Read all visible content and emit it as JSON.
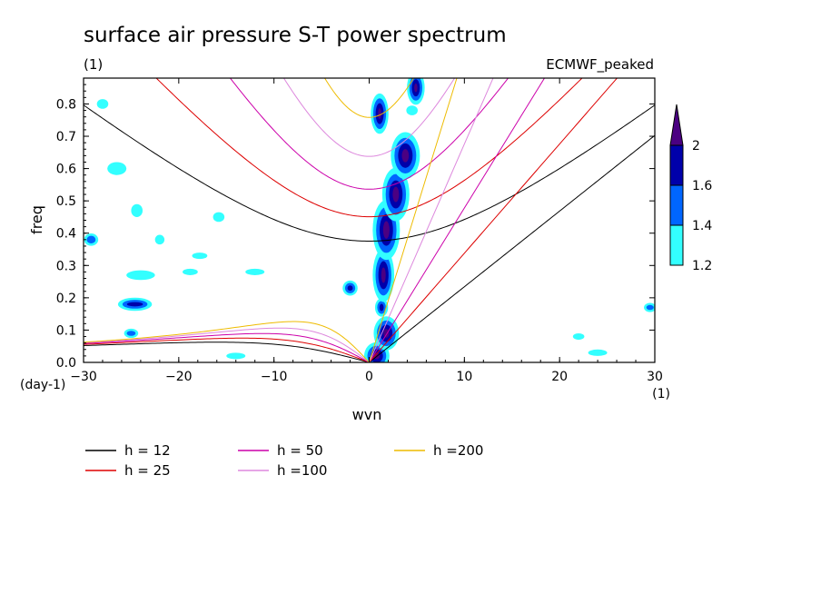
{
  "chart_data": {
    "type": "heatmap",
    "title": "surface air pressure S-T power spectrum",
    "subtitle_left": "(1)",
    "subtitle_right": "ECMWF_peaked",
    "xlabel": "wvn",
    "ylabel": "freq",
    "x_unit": "(1)",
    "y_unit": "(day-1)",
    "xlim": [
      -30,
      30
    ],
    "ylim": [
      0,
      0.88
    ],
    "xticks": [
      -30,
      -20,
      -10,
      0,
      10,
      20,
      30
    ],
    "yticks": [
      0.0,
      0.1,
      0.2,
      0.3,
      0.4,
      0.5,
      0.6,
      0.7,
      0.8
    ],
    "ytick_labels": [
      "0.0",
      "0.1",
      "0.2",
      "0.3",
      "0.4",
      "0.5",
      "0.6",
      "0.7",
      "0.8"
    ],
    "colorbar": {
      "levels": [
        "1.2",
        "1.4",
        "1.6",
        "2"
      ],
      "colors": [
        "#33ffff",
        "#0066ff",
        "#0000aa",
        "#4b0082"
      ]
    },
    "dispersion_curves": [
      {
        "label": "h = 12",
        "h": 12,
        "color": "#000000"
      },
      {
        "label": "h = 25",
        "h": 25,
        "color": "#dd0000"
      },
      {
        "label": "h = 50",
        "h": 50,
        "color": "#cc00aa"
      },
      {
        "label": "h =100",
        "h": 100,
        "color": "#dd88dd"
      },
      {
        "label": "h =200",
        "h": 200,
        "color": "#eebb00"
      }
    ],
    "blobs": [
      {
        "x": 0.8,
        "y": 0.02,
        "rx": 0.9,
        "ry": 0.03,
        "level": 3
      },
      {
        "x": 1.8,
        "y": 0.09,
        "rx": 0.9,
        "ry": 0.04,
        "level": 3
      },
      {
        "x": 1.3,
        "y": 0.17,
        "rx": 0.4,
        "ry": 0.02,
        "level": 2
      },
      {
        "x": 1.5,
        "y": 0.27,
        "rx": 0.7,
        "ry": 0.07,
        "level": 3
      },
      {
        "x": 1.8,
        "y": 0.41,
        "rx": 1.0,
        "ry": 0.08,
        "level": 3
      },
      {
        "x": 2.8,
        "y": 0.52,
        "rx": 1.0,
        "ry": 0.07,
        "level": 3
      },
      {
        "x": 3.8,
        "y": 0.64,
        "rx": 1.1,
        "ry": 0.06,
        "level": 3
      },
      {
        "x": 1.1,
        "y": 0.77,
        "rx": 0.5,
        "ry": 0.05,
        "level": 3
      },
      {
        "x": 4.9,
        "y": 0.85,
        "rx": 0.5,
        "ry": 0.04,
        "level": 3
      },
      {
        "x": -2.0,
        "y": 0.23,
        "rx": 0.5,
        "ry": 0.015,
        "level": 2
      },
      {
        "x": -24.6,
        "y": 0.18,
        "rx": 1.5,
        "ry": 0.012,
        "level": 2
      },
      {
        "x": -26.5,
        "y": 0.6,
        "rx": 1.0,
        "ry": 0.02,
        "level": 0
      },
      {
        "x": -29.2,
        "y": 0.38,
        "rx": 0.6,
        "ry": 0.015,
        "level": 1
      },
      {
        "x": -25.0,
        "y": 0.09,
        "rx": 0.6,
        "ry": 0.01,
        "level": 1
      },
      {
        "x": -14.0,
        "y": 0.02,
        "rx": 1.0,
        "ry": 0.01,
        "level": 0
      },
      {
        "x": -24.0,
        "y": 0.27,
        "rx": 1.5,
        "ry": 0.015,
        "level": 0
      },
      {
        "x": -17.8,
        "y": 0.33,
        "rx": 0.8,
        "ry": 0.01,
        "level": 0
      },
      {
        "x": -18.8,
        "y": 0.28,
        "rx": 0.8,
        "ry": 0.01,
        "level": 0
      },
      {
        "x": -28.0,
        "y": 0.8,
        "rx": 0.6,
        "ry": 0.015,
        "level": 0
      },
      {
        "x": -12.0,
        "y": 0.28,
        "rx": 1.0,
        "ry": 0.01,
        "level": 0
      },
      {
        "x": -24.4,
        "y": 0.47,
        "rx": 0.6,
        "ry": 0.02,
        "level": 0
      },
      {
        "x": -22.0,
        "y": 0.38,
        "rx": 0.5,
        "ry": 0.015,
        "level": 0
      },
      {
        "x": -15.8,
        "y": 0.45,
        "rx": 0.6,
        "ry": 0.015,
        "level": 0
      },
      {
        "x": 4.5,
        "y": 0.78,
        "rx": 0.6,
        "ry": 0.015,
        "level": 0
      },
      {
        "x": 24.0,
        "y": 0.03,
        "rx": 1.0,
        "ry": 0.01,
        "level": 0
      },
      {
        "x": 29.5,
        "y": 0.17,
        "rx": 0.5,
        "ry": 0.01,
        "level": 1
      },
      {
        "x": 22.0,
        "y": 0.08,
        "rx": 0.6,
        "ry": 0.01,
        "level": 0
      }
    ]
  }
}
